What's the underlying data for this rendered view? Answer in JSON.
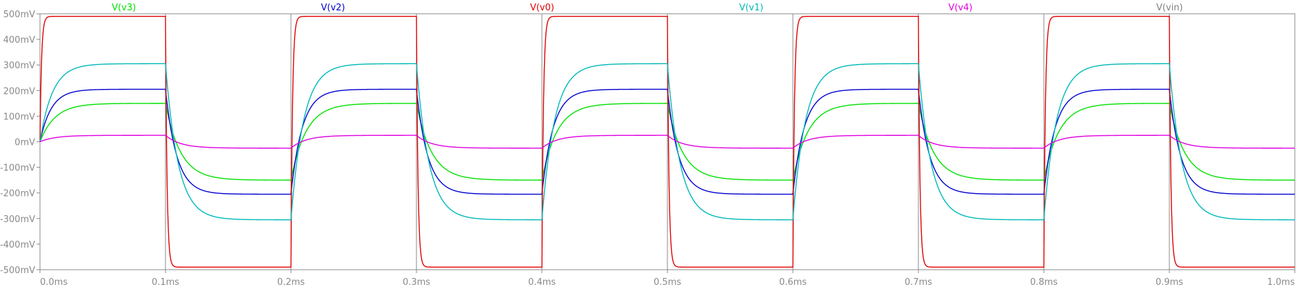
{
  "chart_data": {
    "type": "line",
    "title": "",
    "xlabel": "",
    "ylabel": "",
    "xlim": [
      0,
      1.0
    ],
    "ylim": [
      -500,
      500
    ],
    "x_unit": "ms",
    "y_unit": "mV",
    "x_ticks": [
      0.0,
      0.1,
      0.2,
      0.3,
      0.4,
      0.5,
      0.6,
      0.7,
      0.8,
      0.9,
      1.0
    ],
    "x_tick_labels": [
      "0.0ms",
      "0.1ms",
      "0.2ms",
      "0.3ms",
      "0.4ms",
      "0.5ms",
      "0.6ms",
      "0.7ms",
      "0.8ms",
      "0.9ms",
      "1.0ms"
    ],
    "y_ticks": [
      500,
      400,
      300,
      200,
      100,
      0,
      -100,
      -200,
      -300,
      -400,
      -500
    ],
    "y_tick_labels": [
      "500mV",
      "400mV",
      "300mV",
      "200mV",
      "100mV",
      "0mV",
      "-100mV",
      "-200mV",
      "-300mV",
      "-400mV",
      "-500mV"
    ],
    "grid": false,
    "legend_position": "top",
    "square_wave_period_ms": 0.2,
    "series": [
      {
        "name": "V(v3)",
        "color": "#00e000",
        "amplitude_mV": 150,
        "settle_ms": 0.012
      },
      {
        "name": "V(v2)",
        "color": "#0000d0",
        "amplitude_mV": 205,
        "settle_ms": 0.009
      },
      {
        "name": "V(v0)",
        "color": "#e00000",
        "amplitude_mV": 490,
        "settle_ms": 0.0012
      },
      {
        "name": "V(v1)",
        "color": "#00b8b8",
        "amplitude_mV": 305,
        "settle_ms": 0.01
      },
      {
        "name": "V(v4)",
        "color": "#e000e0",
        "amplitude_mV": 25,
        "settle_ms": 0.012
      },
      {
        "name": "V(vin)",
        "color": "#808080"
      }
    ]
  }
}
